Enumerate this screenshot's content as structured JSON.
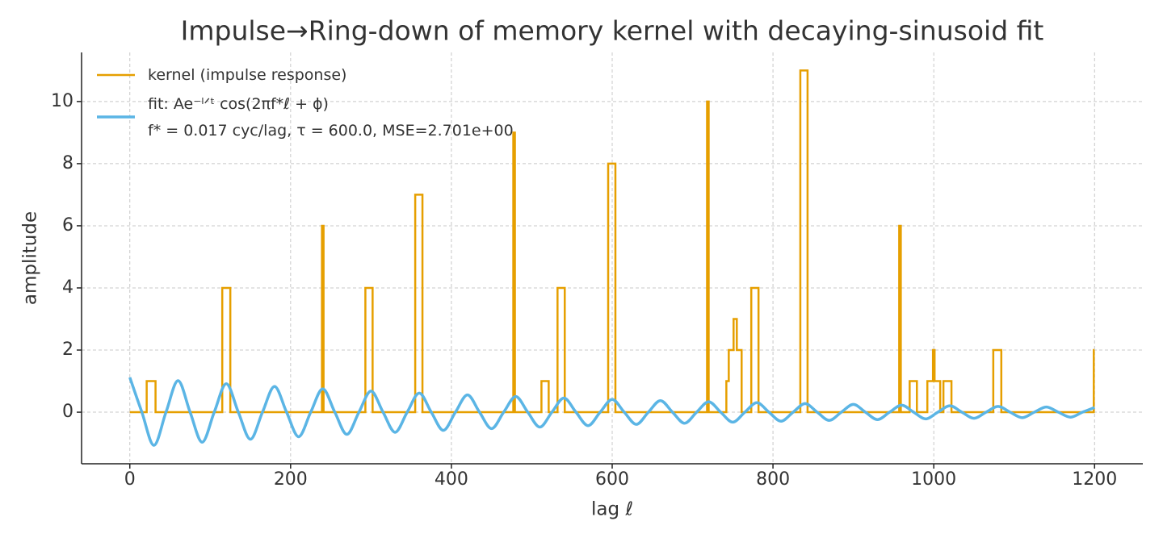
{
  "chart_data": {
    "type": "line",
    "title": "Impulse→Ring-down of memory kernel with decaying-sinusoid fit",
    "x_label": "lag ℓ",
    "y_label": "amplitude",
    "xlim": [
      -60,
      1260
    ],
    "ylim": [
      -1.66,
      11.58
    ],
    "xticks": [
      0,
      200,
      400,
      600,
      800,
      1000,
      1200
    ],
    "yticks": [
      0,
      2,
      4,
      6,
      8,
      10
    ],
    "grid": true,
    "legend": "upper left",
    "series": [
      {
        "name": "kernel (impulse response)",
        "color": "#E69F00",
        "step": true,
        "x": [
          0,
          21,
          21,
          32,
          32,
          115,
          115,
          125,
          125,
          239,
          239,
          241,
          241,
          293,
          293,
          302,
          302,
          355,
          355,
          364,
          364,
          477,
          477,
          479,
          479,
          512,
          512,
          521,
          521,
          532,
          532,
          541,
          541,
          595,
          595,
          604,
          604,
          718,
          718,
          720,
          720,
          742,
          742,
          745,
          745,
          751,
          751,
          755,
          755,
          761,
          761,
          773,
          773,
          782,
          782,
          834,
          834,
          843,
          843,
          957,
          957,
          959,
          959,
          970,
          970,
          979,
          979,
          992,
          992,
          999,
          999,
          1001,
          1001,
          1008,
          1008,
          1012,
          1012,
          1022,
          1022,
          1074,
          1074,
          1084,
          1084,
          1199,
          1199,
          1200
        ],
        "values": [
          0,
          0,
          1,
          1,
          0,
          0,
          4,
          4,
          0,
          0,
          6,
          6,
          0,
          0,
          4,
          4,
          0,
          0,
          7,
          7,
          0,
          0,
          9,
          9,
          0,
          0,
          1,
          1,
          0,
          0,
          4,
          4,
          0,
          0,
          8,
          8,
          0,
          0,
          10,
          10,
          0,
          0,
          1,
          1,
          2,
          2,
          3,
          3,
          2,
          2,
          0,
          0,
          4,
          4,
          0,
          0,
          11,
          11,
          0,
          0,
          6,
          6,
          0,
          0,
          1,
          1,
          0,
          0,
          1,
          1,
          2,
          2,
          1,
          1,
          0,
          0,
          1,
          1,
          0,
          0,
          2,
          2,
          0,
          0,
          2,
          2
        ]
      },
      {
        "name": "fit: Ae⁻ˡᐟᵗ cos(2πf*ℓ + ϕ)\nf* = 0.017 cyc/lag, τ = 600.0, MSE=2.701e+00",
        "color": "#5BB5E5",
        "smooth": true,
        "x": [
          0,
          15,
          30,
          45,
          60,
          75,
          90,
          105,
          120,
          135,
          150,
          165,
          180,
          195,
          210,
          225,
          240,
          255,
          270,
          285,
          300,
          315,
          330,
          345,
          360,
          375,
          390,
          405,
          420,
          435,
          450,
          465,
          480,
          495,
          510,
          525,
          540,
          555,
          570,
          585,
          600,
          615,
          630,
          645,
          660,
          675,
          690,
          705,
          720,
          735,
          750,
          765,
          780,
          795,
          810,
          825,
          840,
          855,
          870,
          885,
          900,
          915,
          930,
          945,
          960,
          975,
          990,
          1005,
          1020,
          1035,
          1050,
          1065,
          1080,
          1095,
          1110,
          1125,
          1140,
          1155,
          1170,
          1185,
          1200
        ],
        "values": [
          1.12,
          0,
          -1.065,
          0,
          1.013,
          0,
          -0.964,
          0,
          0.917,
          0,
          -0.872,
          0,
          0.83,
          0,
          -0.789,
          0,
          0.751,
          0,
          -0.714,
          0,
          0.679,
          0,
          -0.646,
          0,
          0.615,
          0,
          -0.585,
          0,
          0.556,
          0,
          -0.529,
          0,
          0.503,
          0,
          -0.479,
          0,
          0.455,
          0,
          -0.433,
          0,
          0.412,
          0,
          -0.392,
          0,
          0.373,
          0,
          -0.355,
          0,
          0.337,
          0,
          -0.321,
          0,
          0.305,
          0,
          -0.29,
          0,
          0.276,
          0,
          -0.263,
          0,
          0.25,
          0,
          -0.238,
          0,
          0.226,
          0,
          -0.215,
          0,
          0.205,
          0,
          -0.195,
          0,
          0.185,
          0,
          -0.176,
          0,
          0.168,
          0,
          -0.16,
          0,
          0.152
        ]
      }
    ]
  }
}
